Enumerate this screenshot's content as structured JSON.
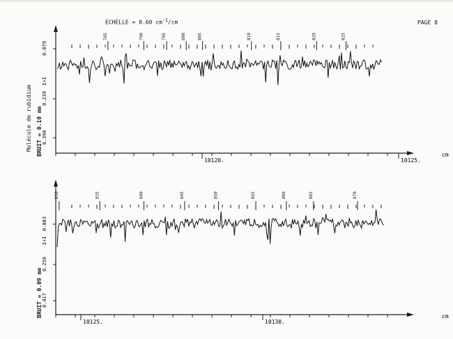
{
  "page": {
    "page_label": "PAGE 8",
    "scale_label": "ECHELLE = 0.60 cm",
    "scale_superscript": "-1",
    "scale_unit_suffix": "/cm",
    "molecule_label": "Molécule de rubidium"
  },
  "chart_data": [
    {
      "type": "line",
      "title": "",
      "xlabel": "cm",
      "x_unit": "cm-1",
      "noise_label": "BRUIT = 0.10 mm",
      "y_ticks": [
        "0.079",
        "0.239",
        "0.398"
      ],
      "x_ticks": [
        "10120.",
        "10125."
      ],
      "xlim": [
        10115.3,
        10125.3
      ],
      "ylim": [
        0,
        1
      ],
      "intensity_marker": "I+I",
      "line_labels": [
        {
          "label": "785",
          "x": 10116.9
        },
        {
          "label": "790",
          "x": 10118.0
        },
        {
          "label": "795",
          "x": 10118.7
        },
        {
          "label": "800",
          "x": 10119.3
        },
        {
          "label": "805",
          "x": 10119.8
        },
        {
          "label": "810",
          "x": 10121.3
        },
        {
          "label": "815",
          "x": 10122.2
        },
        {
          "label": "820",
          "x": 10123.3
        },
        {
          "label": "825",
          "x": 10124.2
        }
      ]
    },
    {
      "type": "line",
      "title": "",
      "xlabel": "cm",
      "x_unit": "cm-1",
      "noise_label": "BRUIT = 0.09 mm",
      "y_ticks": [
        "0.083",
        "0.250",
        "0.417"
      ],
      "x_ticks": [
        "10125.",
        "10130."
      ],
      "xlim": [
        10124.9,
        10134.6
      ],
      "ylim": [
        0,
        1
      ],
      "intensity_marker": "I+I",
      "line_labels": [
        {
          "label": "830",
          "x": 10125.0
        },
        {
          "label": "835",
          "x": 10126.2
        },
        {
          "label": "840",
          "x": 10127.5
        },
        {
          "label": "845",
          "x": 10128.7
        },
        {
          "label": "850",
          "x": 10129.7
        },
        {
          "label": "855",
          "x": 10130.8
        },
        {
          "label": "860",
          "x": 10131.7
        },
        {
          "label": "865",
          "x": 10132.5
        },
        {
          "label": "870",
          "x": 10133.8
        }
      ]
    }
  ]
}
